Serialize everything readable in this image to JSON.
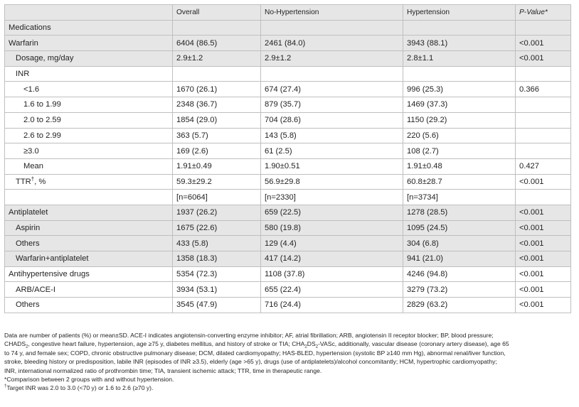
{
  "table": {
    "headers": {
      "label": "",
      "overall": "Overall",
      "no_htn": "No-Hypertension",
      "htn": "Hypertension",
      "p_value": "P-Value*"
    },
    "rows": [
      {
        "label": "Medications",
        "overall": "",
        "no_htn": "",
        "htn": "",
        "p": "",
        "indent": 0,
        "shade": true
      },
      {
        "label": "Warfarin",
        "overall": "6404 (86.5)",
        "no_htn": "2461 (84.0)",
        "htn": "3943 (88.1)",
        "p": "<0.001",
        "indent": 0,
        "shade": true
      },
      {
        "label": "Dosage, mg/day",
        "overall": "2.9±1.2",
        "no_htn": "2.9±1.2",
        "htn": "2.8±1.1",
        "p": "<0.001",
        "indent": 1,
        "shade": true
      },
      {
        "label": "INR",
        "overall": "",
        "no_htn": "",
        "htn": "",
        "p": "",
        "indent": 1,
        "shade": false
      },
      {
        "label": "<1.6",
        "overall": "1670 (26.1)",
        "no_htn": "674 (27.4)",
        "htn": "996 (25.3)",
        "p": "0.366",
        "indent": 2,
        "shade": false
      },
      {
        "label": "1.6 to 1.99",
        "overall": "2348 (36.7)",
        "no_htn": "879 (35.7)",
        "htn": "1469 (37.3)",
        "p": "",
        "indent": 2,
        "shade": false
      },
      {
        "label": "2.0 to 2.59",
        "overall": "1854 (29.0)",
        "no_htn": "704 (28.6)",
        "htn": "1150 (29.2)",
        "p": "",
        "indent": 2,
        "shade": false
      },
      {
        "label": "2.6 to 2.99",
        "overall": "363 (5.7)",
        "no_htn": "143 (5.8)",
        "htn": "220 (5.6)",
        "p": "",
        "indent": 2,
        "shade": false
      },
      {
        "label": "≥3.0",
        "overall": "169 (2.6)",
        "no_htn": "61 (2.5)",
        "htn": "108 (2.7)",
        "p": "",
        "indent": 2,
        "shade": false
      },
      {
        "label": "Mean",
        "overall": "1.91±0.49",
        "no_htn": "1.90±0.51",
        "htn": "1.91±0.48",
        "p": "0.427",
        "indent": 2,
        "shade": false
      },
      {
        "label": "TTR",
        "label_sup": "†",
        "label_suffix": ", %",
        "overall": "59.3±29.2",
        "no_htn": "56.9±29.8",
        "htn": "60.8±28.7",
        "p": "<0.001",
        "indent": 1,
        "shade": false
      },
      {
        "label": "",
        "overall": "[n=6064]",
        "no_htn": "[n=2330]",
        "htn": "[n=3734]",
        "p": "",
        "indent": 1,
        "shade": false
      },
      {
        "label": "Antiplatelet",
        "overall": "1937 (26.2)",
        "no_htn": "659 (22.5)",
        "htn": "1278 (28.5)",
        "p": "<0.001",
        "indent": 0,
        "shade": true
      },
      {
        "label": "Aspirin",
        "overall": "1675 (22.6)",
        "no_htn": "580 (19.8)",
        "htn": "1095 (24.5)",
        "p": "<0.001",
        "indent": 1,
        "shade": true
      },
      {
        "label": "Others",
        "overall": "433 (5.8)",
        "no_htn": "129 (4.4)",
        "htn": "304 (6.8)",
        "p": "<0.001",
        "indent": 1,
        "shade": true
      },
      {
        "label": "Warfarin+antiplatelet",
        "overall": "1358 (18.3)",
        "no_htn": "417 (14.2)",
        "htn": "941 (21.0)",
        "p": "<0.001",
        "indent": 1,
        "shade": true
      },
      {
        "label": "Antihypertensive drugs",
        "overall": "5354 (72.3)",
        "no_htn": "1108 (37.8)",
        "htn": "4246 (94.8)",
        "p": "<0.001",
        "indent": 0,
        "shade": false
      },
      {
        "label": "ARB/ACE-I",
        "overall": "3934 (53.1)",
        "no_htn": "655 (22.4)",
        "htn": "3279 (73.2)",
        "p": "<0.001",
        "indent": 1,
        "shade": false
      },
      {
        "label": "Others",
        "overall": "3545 (47.9)",
        "no_htn": "716 (24.4)",
        "htn": "2829 (63.2)",
        "p": "<0.001",
        "indent": 1,
        "shade": false
      }
    ]
  },
  "footnotes": {
    "main_a": "Data are number of patients (%) or mean±SD. ACE-I indicates angiotensin-converting enzyme inhibitor; AF, atrial fibrillation; ARB, angiotensin II receptor blocker; BP, blood pressure;",
    "main_b1": "CHADS",
    "main_b1_sub": "2",
    "main_b2": ", congestive heart failure, hypertension, age ≥75 y, diabetes mellitus, and history of stroke or TIA; CHA",
    "main_b2_sub1": "2",
    "main_b3": "DS",
    "main_b3_sub": "2",
    "main_b4": "-VASc, additionally, vascular disease (coronary artery disease), age 65",
    "main_c": "to 74 y, and female sex; COPD, chronic obstructive pulmonary disease; DCM, dilated cardiomyopathy; HAS-BLED, hypertension (systolic BP ≥140 mm Hg), abnormal renal/liver function,",
    "main_d": "stroke, bleeding history or predisposition, labile INR (episodes of INR ≥3.5), elderly (age >65 y), drugs (use of antiplatelets)/alcohol concomitantly; HCM, hypertrophic cardiomyopathy;",
    "main_e": "INR, international normalized ratio of prothrombin time; TIA, transient ischemic attack; TTR, time in therapeutic range.",
    "star": "*Comparison between 2 groups with and without hypertension.",
    "dagger_mark": "†",
    "dagger": "Target INR was 2.0 to 3.0 (<70 y) or 1.6 to 2.6 (≥70 y)."
  }
}
